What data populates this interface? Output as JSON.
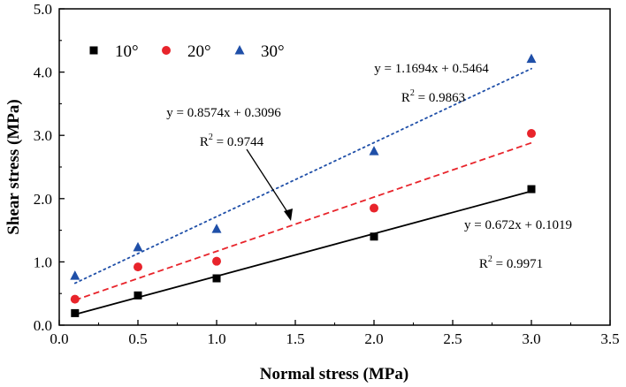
{
  "chart_data": {
    "type": "scatter",
    "xlabel": "Normal stress (MPa)",
    "ylabel": "Shear stress (MPa)",
    "xlim": [
      0.0,
      3.5
    ],
    "ylim": [
      0.0,
      5.0
    ],
    "x_ticks": [
      "0.0",
      "0.5",
      "1.0",
      "1.5",
      "2.0",
      "2.5",
      "3.0",
      "3.5"
    ],
    "y_ticks": [
      "0.0",
      "1.0",
      "2.0",
      "3.0",
      "4.0",
      "5.0"
    ],
    "grid": false,
    "legend_position": "top-left",
    "x": [
      0.1,
      0.5,
      1.0,
      2.0,
      3.0
    ],
    "series": [
      {
        "name": "10°",
        "marker": "square",
        "color": "#000000",
        "values": [
          0.19,
          0.47,
          0.74,
          1.4,
          2.15
        ],
        "fit": {
          "slope": 0.672,
          "intercept": 0.1019,
          "style": "solid",
          "equation": "y = 0.672x + 0.1019",
          "r2_label": "R",
          "r2_value": " = 0.9971"
        }
      },
      {
        "name": "20°",
        "marker": "circle",
        "color": "#e8242b",
        "values": [
          0.41,
          0.92,
          1.01,
          1.85,
          3.03
        ],
        "fit": {
          "slope": 0.8574,
          "intercept": 0.3096,
          "style": "dashed",
          "equation": "y = 0.8574x + 0.3096",
          "r2_label": "R",
          "r2_value": " = 0.9744"
        }
      },
      {
        "name": "30°",
        "marker": "triangle",
        "color": "#1f4fa8",
        "values": [
          0.78,
          1.23,
          1.52,
          2.75,
          4.21
        ],
        "fit": {
          "slope": 1.1694,
          "intercept": 0.5464,
          "style": "dotted",
          "equation": "y = 1.1694x + 0.5464",
          "r2_label": "R",
          "r2_value": " = 0.9863"
        }
      }
    ],
    "r2_superscript": "2",
    "annotation": {
      "text": "arrow from 20° equation to 20° fit line"
    }
  }
}
